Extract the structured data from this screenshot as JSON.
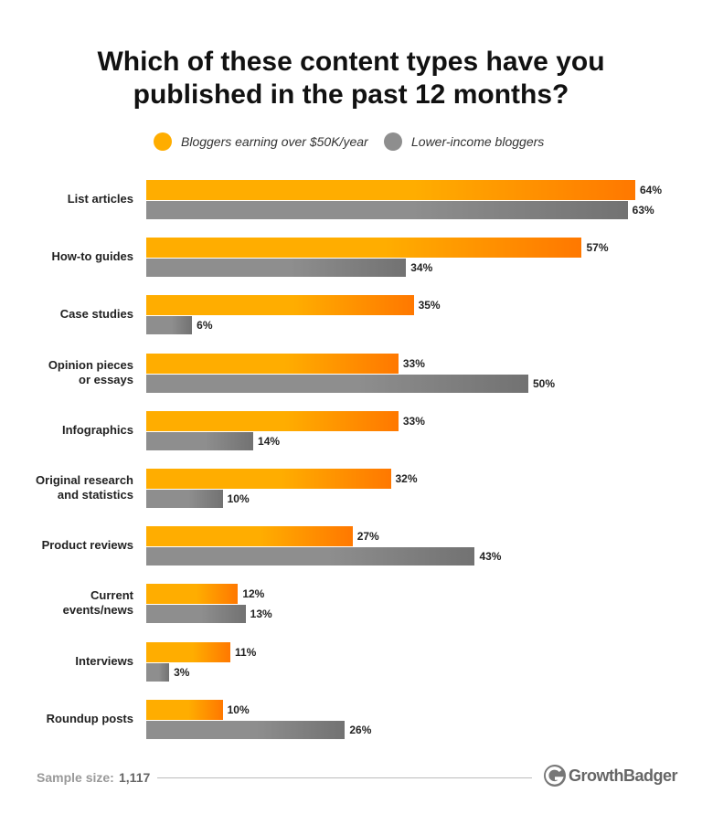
{
  "chart_data": {
    "type": "bar",
    "orientation": "horizontal",
    "title": "Which of these content types have you published in the past 12 months?",
    "categories": [
      "List articles",
      "How-to guides",
      "Case studies",
      "Opinion pieces\nor essays",
      "Infographics",
      "Original research\nand statistics",
      "Product reviews",
      "Current\nevents/news",
      "Interviews",
      "Roundup posts"
    ],
    "series": [
      {
        "name": "Bloggers earning over $50K/year",
        "color": "#ffad00",
        "values": [
          64,
          57,
          35,
          33,
          33,
          32,
          27,
          12,
          11,
          10
        ],
        "value_labels": [
          "64%",
          "57%",
          "35%",
          "33%",
          "33%",
          "32%",
          "27%",
          "12%",
          "11%",
          "10%"
        ]
      },
      {
        "name": "Lower-income bloggers",
        "color": "#8e8e8e",
        "values": [
          63,
          34,
          6,
          50,
          14,
          10,
          43,
          13,
          3,
          26
        ],
        "value_labels": [
          "63%",
          "34%",
          "6%",
          "50%",
          "14%",
          "10%",
          "43%",
          "13%",
          "3%",
          "26%"
        ]
      }
    ],
    "legend": "top"
  },
  "footer": {
    "sample_label": "Sample size:",
    "sample_value": "1,117",
    "brand": "GrowthBadger"
  }
}
